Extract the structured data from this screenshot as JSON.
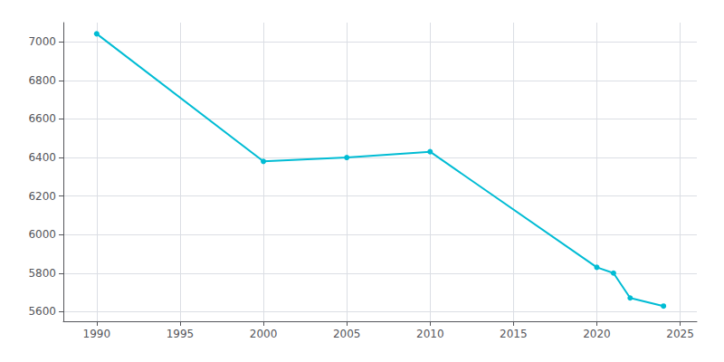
{
  "chart_data": {
    "type": "line",
    "x": [
      1990,
      2000,
      2005,
      2010,
      2020,
      2021,
      2022,
      2024
    ],
    "values": [
      7042,
      6380,
      6400,
      6430,
      5830,
      5800,
      5671,
      5629
    ],
    "color": "#00bcd4",
    "marker": "circle",
    "xlim": [
      1988,
      2026
    ],
    "xticks": [
      1990,
      1995,
      2000,
      2005,
      2010,
      2015,
      2020,
      2025
    ],
    "ylim": [
      5550,
      7100
    ],
    "yticks": [
      5600,
      5800,
      6000,
      6200,
      6400,
      6600,
      6800,
      7000
    ],
    "grid": true
  }
}
